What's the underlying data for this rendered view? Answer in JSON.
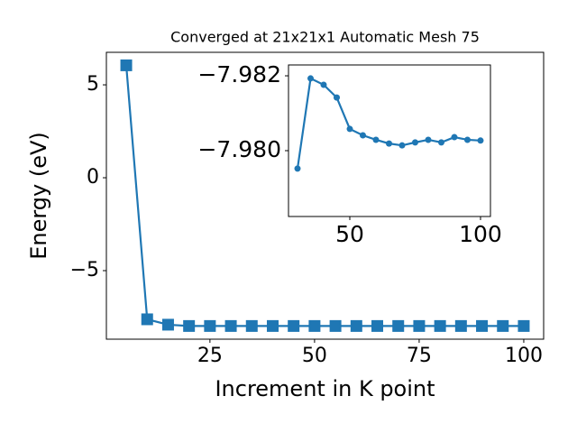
{
  "chart_data": [
    {
      "type": "line",
      "title": "Converged at 21x21x1 Automatic Mesh 75",
      "x_label": "Increment in K point",
      "y_label": "Energy (eV)",
      "x": [
        5,
        10,
        15,
        20,
        25,
        30,
        35,
        40,
        45,
        50,
        55,
        60,
        65,
        70,
        75,
        80,
        85,
        90,
        95,
        100
      ],
      "series": [
        {
          "color": "#1f77b4",
          "marker": "square",
          "values": [
            6.05,
            -7.62,
            -7.91,
            -7.98,
            -7.98,
            -7.98,
            -7.98,
            -7.98,
            -7.98,
            -7.98,
            -7.98,
            -7.98,
            -7.98,
            -7.98,
            -7.98,
            -7.98,
            -7.98,
            -7.98,
            -7.98,
            -7.98
          ]
        }
      ],
      "xlim": [
        0.25,
        104.75
      ],
      "xticks": [
        25,
        50,
        75,
        100
      ],
      "ylim": [
        -8.69,
        6.75
      ],
      "yticks": [
        {
          "value": -5,
          "label": "−5"
        },
        0,
        5
      ]
    },
    {
      "type": "line",
      "x": [
        30,
        35,
        40,
        45,
        50,
        55,
        60,
        65,
        70,
        75,
        80,
        85,
        90,
        95,
        100
      ],
      "series": [
        {
          "color": "#1f77b4",
          "marker": "circle",
          "values": [
            -7.97952,
            -7.98193,
            -7.98176,
            -7.98142,
            -7.98058,
            -7.98041,
            -7.98029,
            -7.98019,
            -7.98014,
            -7.98022,
            -7.98029,
            -7.98022,
            -7.98036,
            -7.98029,
            -7.98027
          ]
        }
      ],
      "xlim": [
        26.55,
        103.8
      ],
      "xticks": [
        50,
        100
      ],
      "ylim": [
        -7.97824,
        -7.98229
      ],
      "yticks": [
        {
          "value": -7.98,
          "label": "−7.980"
        },
        {
          "value": -7.982,
          "label": "−7.982"
        }
      ]
    }
  ]
}
